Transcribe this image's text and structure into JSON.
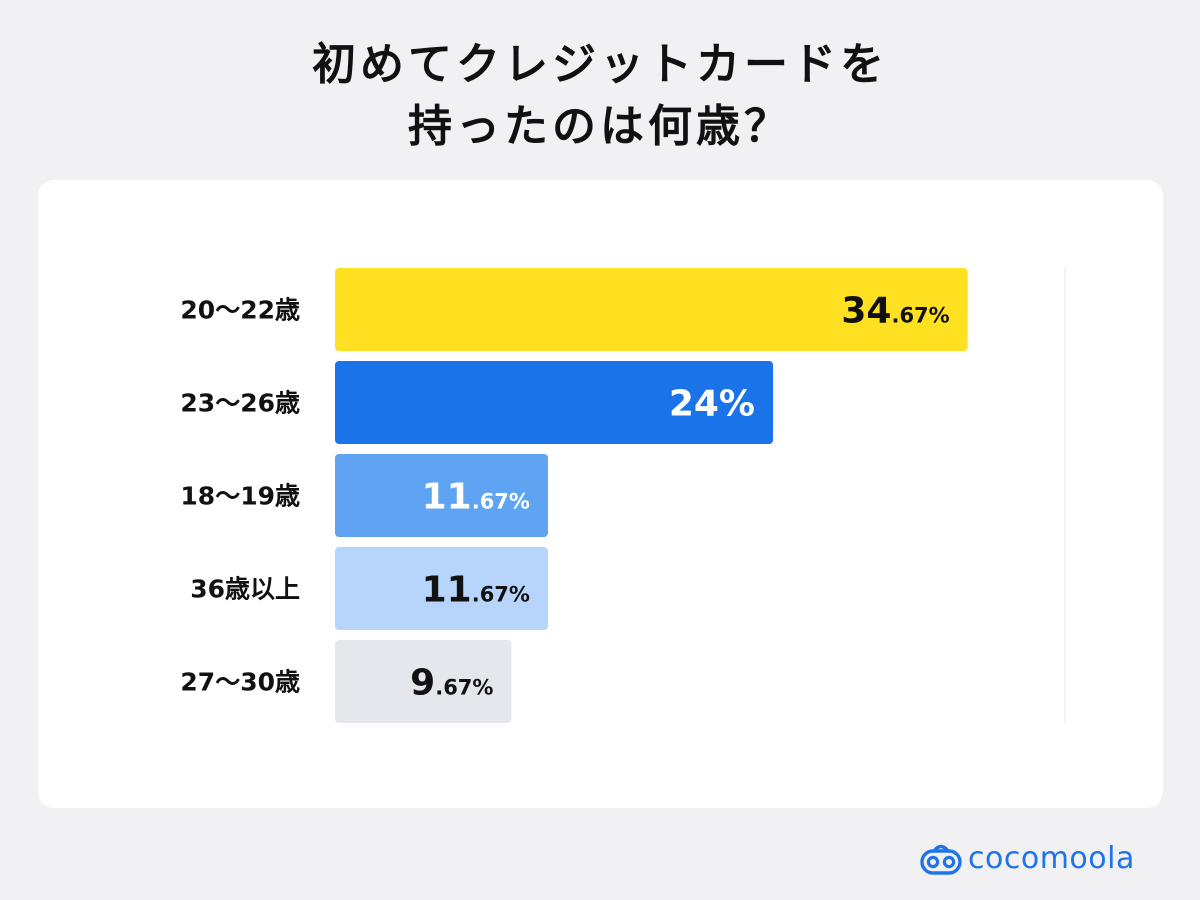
{
  "chart_data": {
    "type": "bar",
    "orientation": "horizontal",
    "title_lines": [
      "初めてクレジットカードを",
      "持ったのは何歳？"
    ],
    "categories": [
      "20〜22歳",
      "23〜26歳",
      "18〜19歳",
      "36歳以上",
      "27〜30歳"
    ],
    "values": [
      34.67,
      24,
      11.67,
      11.67,
      9.67
    ],
    "value_labels": [
      {
        "int": "34",
        "dec": ".67%"
      },
      {
        "int": "24%",
        "dec": ""
      },
      {
        "int": "11",
        "dec": ".67%"
      },
      {
        "int": "11",
        "dec": ".67%"
      },
      {
        "int": "9",
        "dec": ".67%"
      }
    ],
    "bar_colors": [
      "#ffe121",
      "#1a73e8",
      "#5ea4f3",
      "#b7d4fb",
      "#e5e7ec"
    ],
    "label_colors": [
      "#111111",
      "#ffffff",
      "#ffffff",
      "#111111",
      "#111111"
    ],
    "xlim": [
      0,
      40
    ],
    "grid": false,
    "legend": "none"
  },
  "brand": {
    "name": "cocomoola",
    "color": "#1f74e8"
  }
}
